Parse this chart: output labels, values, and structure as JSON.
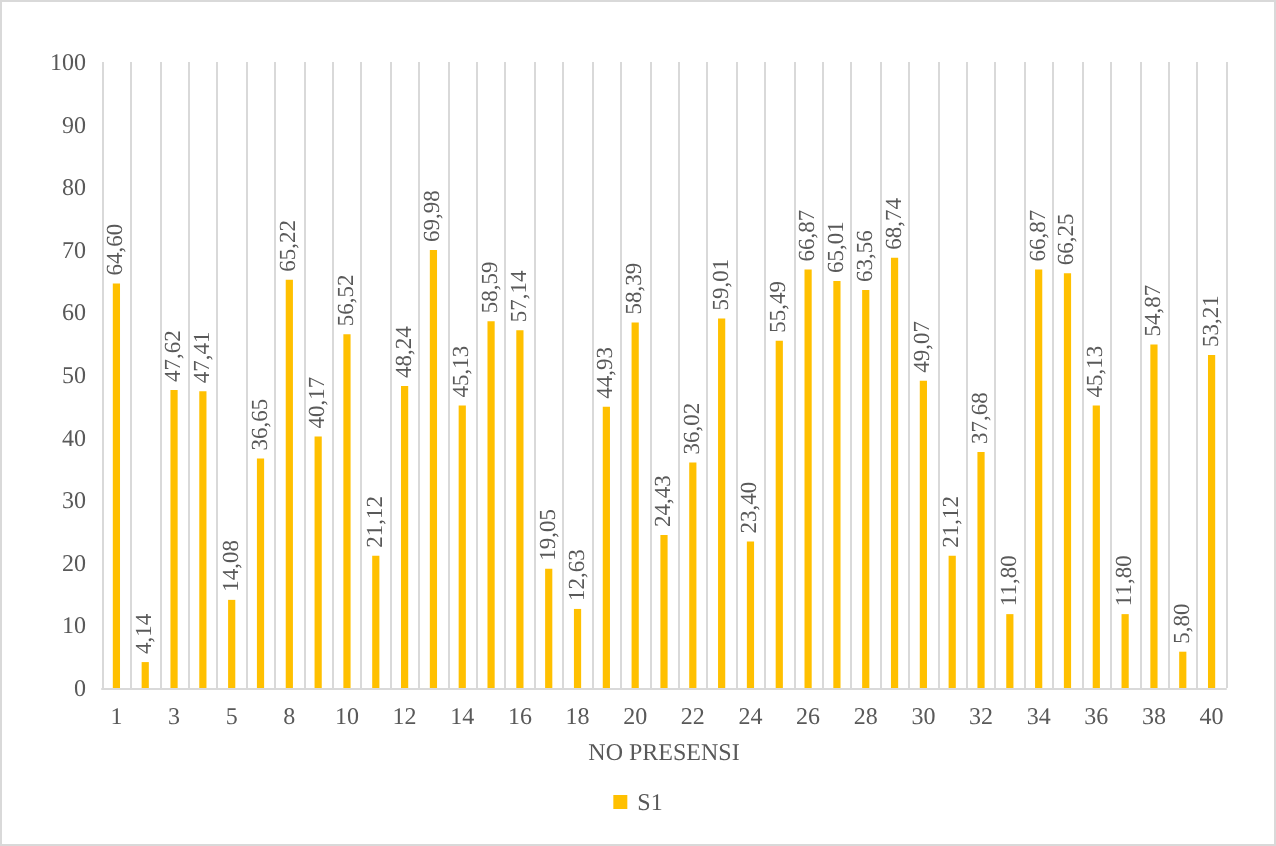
{
  "chart_data": {
    "type": "bar",
    "xlabel": "NO PRESENSI",
    "categories": [
      "1",
      null,
      "3",
      null,
      "5",
      null,
      "8",
      null,
      "10",
      null,
      "12",
      null,
      "14",
      null,
      "16",
      null,
      "18",
      null,
      "20",
      null,
      "22",
      null,
      "24",
      null,
      "26",
      null,
      "28",
      null,
      "30",
      null,
      "32",
      null,
      "34",
      null,
      "36",
      null,
      "38",
      null,
      "40"
    ],
    "series": [
      {
        "name": "S1",
        "color": "#ffc000",
        "values": [
          64.6,
          4.14,
          47.62,
          47.41,
          14.08,
          36.65,
          65.22,
          40.17,
          56.52,
          21.12,
          48.24,
          69.98,
          45.13,
          58.59,
          57.14,
          19.05,
          12.63,
          44.93,
          58.39,
          24.43,
          36.02,
          59.01,
          23.4,
          55.49,
          66.87,
          65.01,
          63.56,
          68.74,
          49.07,
          21.12,
          37.68,
          11.8,
          66.87,
          66.25,
          45.13,
          11.8,
          54.87,
          5.8,
          53.21
        ],
        "value_labels": [
          "64,60",
          "4,14",
          "47,62",
          "47,41",
          "14,08",
          "36,65",
          "65,22",
          "40,17",
          "56,52",
          "21,12",
          "48,24",
          "69,98",
          "45,13",
          "58,59",
          "57,14",
          "19,05",
          "12,63",
          "44,93",
          "58,39",
          "24,43",
          "36,02",
          "59,01",
          "23,40",
          "55,49",
          "66,87",
          "65,01",
          "63,56",
          "68,74",
          "49,07",
          "21,12",
          "37,68",
          "11,80",
          "66,87",
          "66,25",
          "45,13",
          "11,80",
          "54,87",
          "5,80",
          "53,21"
        ]
      }
    ],
    "ylim": [
      0,
      100
    ],
    "yticks": [
      0,
      10,
      20,
      30,
      40,
      50,
      60,
      70,
      80,
      90,
      100
    ],
    "grid": "x",
    "legend": "bottom"
  }
}
